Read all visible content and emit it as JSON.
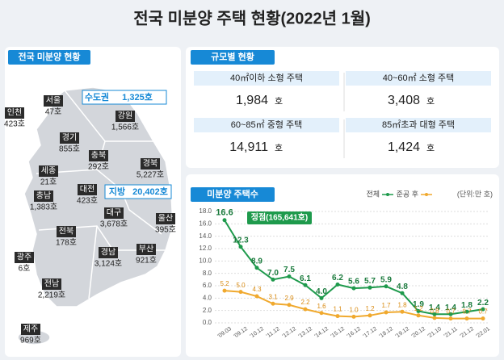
{
  "title": "전국 미분양 주택 현황(2022년 1월)",
  "map_panel": {
    "heading": "전국 미분양 현황",
    "capital_area": {
      "label": "수도권",
      "value": "1,325호"
    },
    "non_capital": {
      "label": "지방",
      "value": "20,402호"
    },
    "regions": [
      {
        "name": "인천",
        "value": "423호"
      },
      {
        "name": "서울",
        "value": "47호"
      },
      {
        "name": "경기",
        "value": "855호"
      },
      {
        "name": "강원",
        "value": "1,566호"
      },
      {
        "name": "충북",
        "value": "292호"
      },
      {
        "name": "경북",
        "value": "5,227호"
      },
      {
        "name": "세종",
        "value": "21호"
      },
      {
        "name": "대전",
        "value": "423호"
      },
      {
        "name": "충남",
        "value": "1,383호"
      },
      {
        "name": "대구",
        "value": "3,678호"
      },
      {
        "name": "울산",
        "value": "395호"
      },
      {
        "name": "전북",
        "value": "178호"
      },
      {
        "name": "경남",
        "value": "3,124호"
      },
      {
        "name": "부산",
        "value": "921호"
      },
      {
        "name": "광주",
        "value": "6호"
      },
      {
        "name": "전남",
        "value": "2,219호"
      },
      {
        "name": "제주",
        "value": "969호"
      }
    ]
  },
  "size_panel": {
    "heading": "규모별 현황",
    "cells": [
      {
        "label": "40㎡이하 소형 주택",
        "value": "1,984",
        "unit": "호"
      },
      {
        "label": "40~60㎡ 소형 주택",
        "value": "3,408",
        "unit": "호"
      },
      {
        "label": "60~85㎡ 중형 주택",
        "value": "14,911",
        "unit": "호"
      },
      {
        "label": "85㎡초과 대형 주택",
        "value": "1,424",
        "unit": "호"
      }
    ]
  },
  "chart_data": {
    "type": "line",
    "title": "미분양 주택수",
    "unit_note": "(단위:만 호)",
    "annotation": "정점(165,641호)",
    "categories": [
      "'09.03",
      "'09.12",
      "'10.12",
      "'11.12",
      "'12.12",
      "'13.12",
      "'14.12",
      "'15.12",
      "'16.12",
      "'17.12",
      "'18.12",
      "'19.12",
      "'20.12",
      "'21.10",
      "'21.11",
      "'21.12",
      "'22.01"
    ],
    "series": [
      {
        "name": "전체",
        "color": "#1e9a4c",
        "values": [
          16.6,
          12.3,
          8.9,
          7.0,
          7.5,
          6.1,
          4.0,
          6.2,
          5.6,
          5.7,
          5.9,
          4.8,
          1.9,
          1.4,
          1.4,
          1.8,
          2.2
        ],
        "value_labels": [
          "16.6",
          "12.3",
          "8.9",
          "7.0",
          "7.5",
          "6.1",
          "4.0",
          "6.2",
          "5.6",
          "5.7",
          "5.9",
          "4.8",
          "1.9",
          "1.4",
          "1.4",
          "1.8",
          "2.2"
        ]
      },
      {
        "name": "준공 후",
        "color": "#f0a92e",
        "values": [
          5.2,
          5.0,
          4.3,
          3.1,
          2.9,
          2.2,
          1.6,
          1.1,
          1.0,
          1.2,
          1.7,
          1.8,
          1.2,
          0.8,
          0.7,
          0.7,
          0.7
        ],
        "value_labels": [
          "5.2",
          "5.0",
          "4.3",
          "3.1",
          "2.9",
          "2.2",
          "1.6",
          "1.1",
          "1.0",
          "1.2",
          "1.7",
          "1.8",
          "1.2",
          "0.8",
          "0.7",
          "0.7",
          "0.7"
        ]
      }
    ],
    "ylim": [
      0,
      18
    ],
    "yticks": [
      {
        "value": 0,
        "label": "0.0"
      },
      {
        "value": 2,
        "label": "2.0"
      },
      {
        "value": 4,
        "label": "4.0"
      },
      {
        "value": 6,
        "label": "6.0"
      },
      {
        "value": 8,
        "label": "8.0"
      },
      {
        "value": 10,
        "label": "10.0"
      },
      {
        "value": 12,
        "label": "12.0"
      },
      {
        "value": 14,
        "label": "14.0"
      },
      {
        "value": 16,
        "label": "16.0"
      },
      {
        "value": 18,
        "label": "18.0"
      }
    ],
    "grid": true
  }
}
